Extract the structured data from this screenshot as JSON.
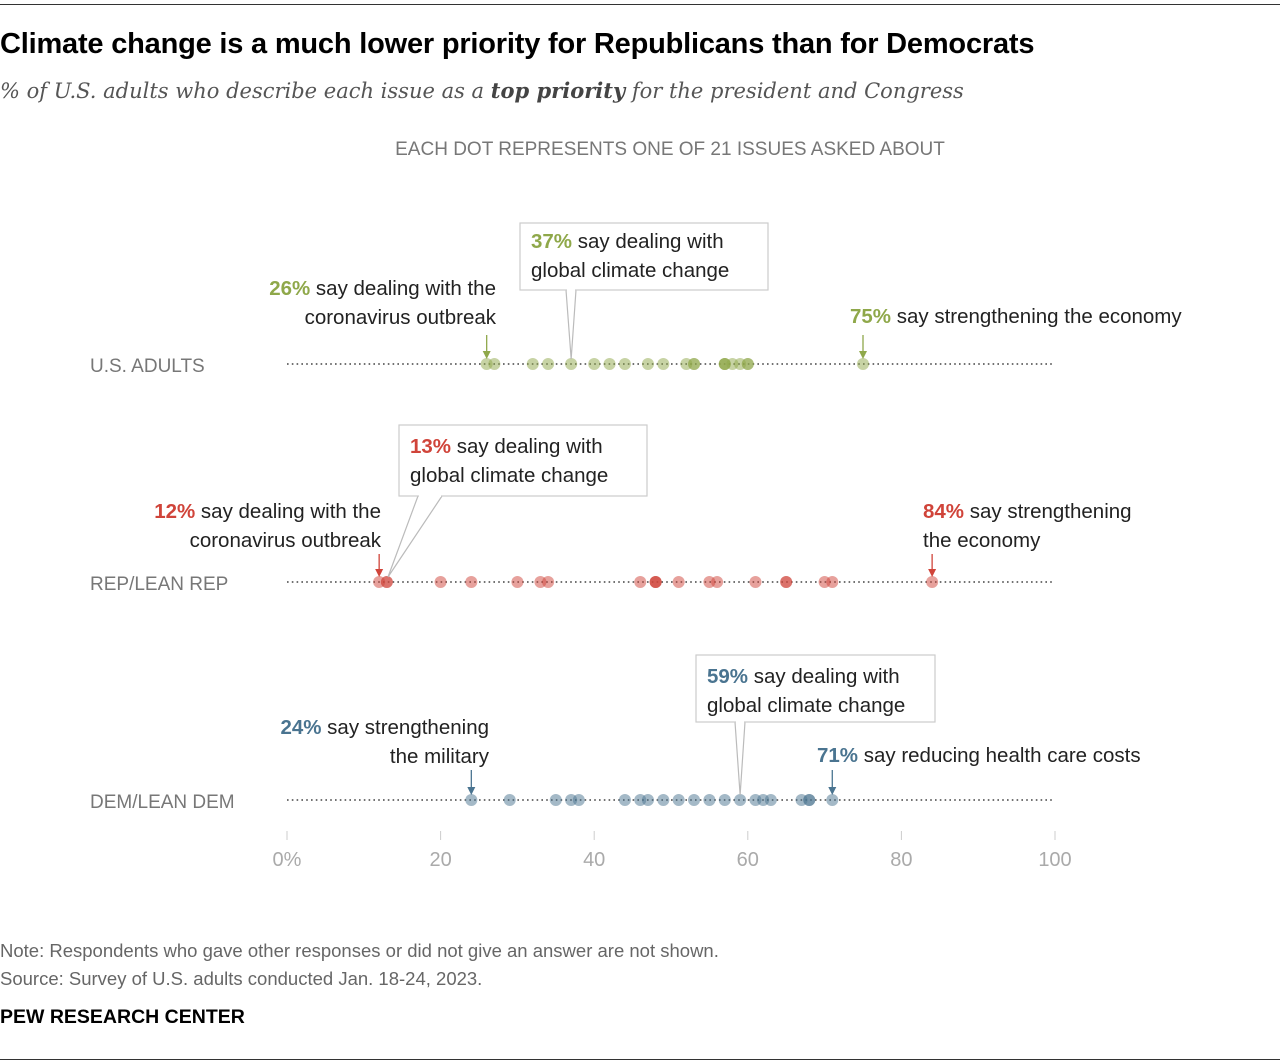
{
  "title": "Climate change is a much lower priority for Republicans than for Democrats",
  "subtitle": {
    "before": "% of U.S. adults who describe each issue as a ",
    "emphasis": "top priority",
    "after": " for the president and Congress"
  },
  "chart_data": {
    "type": "scatter",
    "title": "Climate change is a much lower priority for Republicans than for Democrats",
    "header": "EACH DOT REPRESENTS ONE OF 21 ISSUES ASKED ABOUT",
    "xlim": [
      0,
      100
    ],
    "x_ticks": [
      "0%",
      "20",
      "40",
      "60",
      "80",
      "100"
    ],
    "x_tick_values": [
      0,
      20,
      40,
      60,
      80,
      100
    ],
    "grid": false,
    "rows": [
      {
        "label": "U.S. ADULTS",
        "color": "#8fa84a",
        "values": [
          26,
          27,
          32,
          34,
          37,
          40,
          42,
          44,
          47,
          49,
          52,
          53,
          53,
          57,
          57,
          57,
          58,
          59,
          60,
          60,
          75
        ],
        "annotations": [
          {
            "value": 26,
            "pct": "26%",
            "lines": [
              " say dealing with the",
              "coronavirus outbreak"
            ],
            "style": "left-arrow"
          },
          {
            "value": 37,
            "pct": "37%",
            "lines": [
              " say dealing with",
              "global climate change"
            ],
            "style": "callout"
          },
          {
            "value": 75,
            "pct": "75%",
            "lines": [
              " say strengthening the economy"
            ],
            "style": "right-arrow"
          }
        ]
      },
      {
        "label": "REP/LEAN REP",
        "color": "#d0443a",
        "values": [
          12,
          13,
          13,
          20,
          24,
          30,
          33,
          34,
          46,
          48,
          48,
          51,
          55,
          56,
          61,
          65,
          65,
          70,
          71,
          84,
          48
        ],
        "annotations": [
          {
            "value": 12,
            "pct": "12%",
            "lines": [
              " say dealing with the",
              "coronavirus outbreak"
            ],
            "style": "left-arrow"
          },
          {
            "value": 13,
            "pct": "13%",
            "lines": [
              " say dealing with",
              "global climate change"
            ],
            "style": "callout"
          },
          {
            "value": 84,
            "pct": "84%",
            "lines": [
              " say strengthening",
              "the economy"
            ],
            "style": "right-arrow"
          }
        ]
      },
      {
        "label": "DEM/LEAN DEM",
        "color": "#4a7490",
        "values": [
          24,
          29,
          35,
          37,
          38,
          44,
          46,
          47,
          49,
          51,
          53,
          55,
          57,
          59,
          61,
          62,
          63,
          67,
          68,
          68,
          71
        ],
        "annotations": [
          {
            "value": 24,
            "pct": "24%",
            "lines": [
              " say strengthening",
              "the military"
            ],
            "style": "left-arrow"
          },
          {
            "value": 59,
            "pct": "59%",
            "lines": [
              " say dealing with",
              "global climate change"
            ],
            "style": "callout"
          },
          {
            "value": 71,
            "pct": "71%",
            "lines": [
              " say reducing health care costs"
            ],
            "style": "right-arrow"
          }
        ]
      }
    ]
  },
  "footer": {
    "note": "Note: Respondents who gave other responses or did not give an answer are not shown.",
    "source": "Source: Survey of U.S. adults conducted Jan. 18-24, 2023.",
    "brand": "PEW RESEARCH CENTER"
  }
}
